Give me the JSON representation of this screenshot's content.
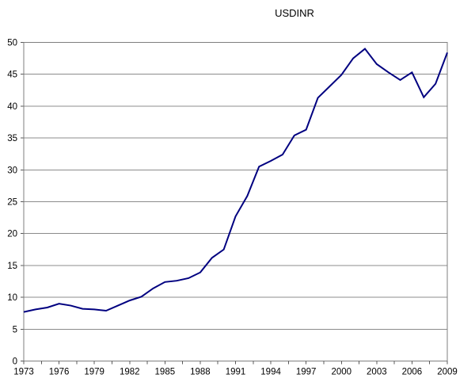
{
  "title": "USDINR",
  "chart_data": {
    "type": "line",
    "title": "USDINR",
    "series_name": "USDINR",
    "x": [
      1973,
      1974,
      1975,
      1976,
      1977,
      1978,
      1979,
      1980,
      1981,
      1982,
      1983,
      1984,
      1985,
      1986,
      1987,
      1988,
      1989,
      1990,
      1991,
      1992,
      1993,
      1994,
      1995,
      1996,
      1997,
      1998,
      1999,
      2000,
      2001,
      2002,
      2003,
      2004,
      2005,
      2006,
      2007,
      2008,
      2009
    ],
    "values": [
      7.7,
      8.1,
      8.4,
      9.0,
      8.7,
      8.2,
      8.1,
      7.9,
      8.7,
      9.5,
      10.1,
      11.4,
      12.4,
      12.6,
      13.0,
      13.9,
      16.2,
      17.5,
      22.7,
      25.9,
      30.5,
      31.4,
      32.4,
      35.4,
      36.3,
      41.3,
      43.1,
      44.9,
      47.5,
      49.0,
      46.6,
      45.3,
      44.1,
      45.3,
      41.4,
      43.5,
      48.4
    ],
    "xlabel": "",
    "ylabel": "",
    "xlim": [
      1973,
      2009
    ],
    "ylim": [
      0,
      50
    ],
    "y_ticks": [
      0,
      5,
      10,
      15,
      20,
      25,
      30,
      35,
      40,
      45,
      50
    ],
    "x_tick_labels": [
      1973,
      1976,
      1979,
      1982,
      1985,
      1988,
      1991,
      1994,
      1997,
      2000,
      2003,
      2006,
      2009
    ],
    "x_minor_tick_step": 1.5,
    "grid": "horizontal",
    "legend": "none",
    "line_color": "#000080",
    "grid_color": "#8c8c8c",
    "border_color": "#7f7f7f",
    "tick_color": "#595959",
    "label_color": "#000000",
    "background": "#ffffff"
  }
}
